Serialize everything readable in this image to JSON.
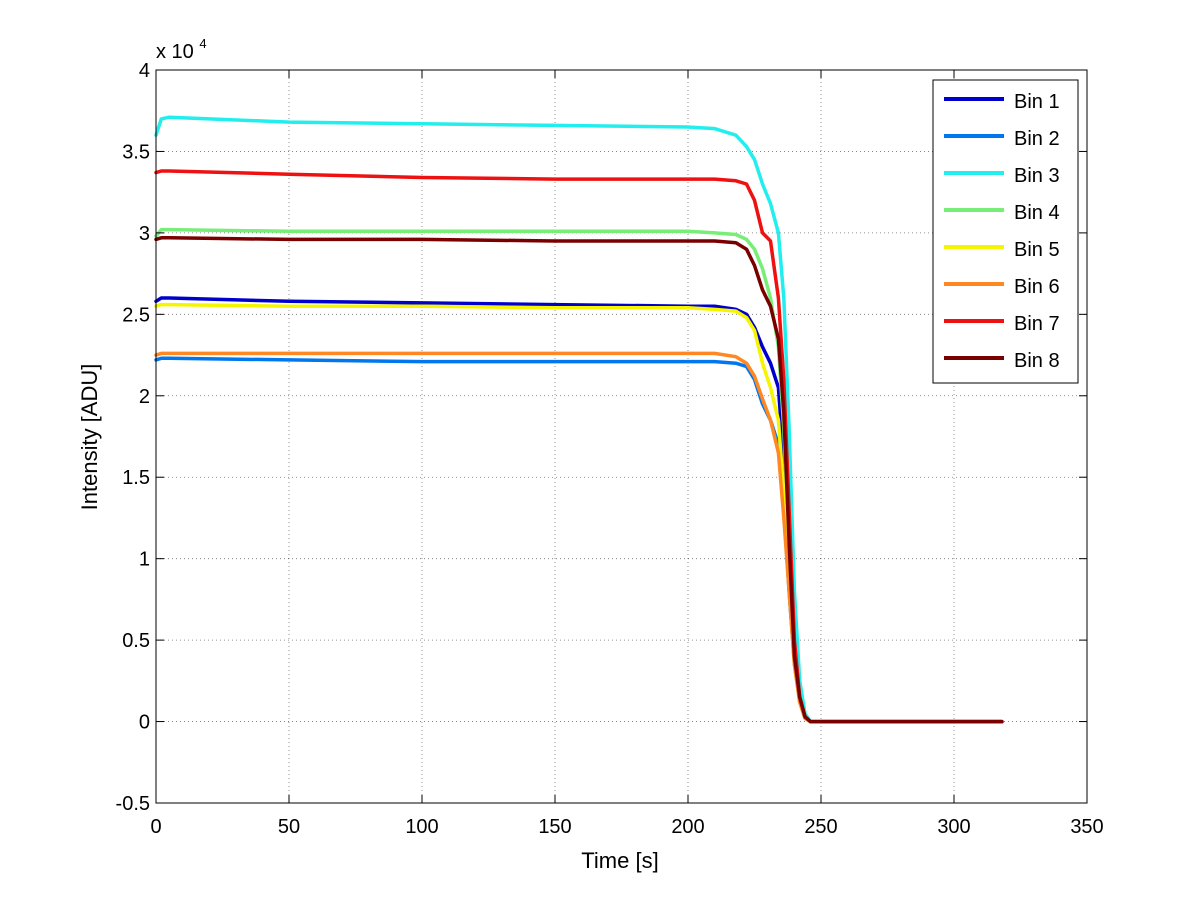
{
  "chart_data": {
    "type": "line",
    "xlabel": "Time [s]",
    "ylabel": "Intensity [ADU]",
    "y_multiplier_label": "x 10",
    "y_multiplier_exponent": "4",
    "xlim": [
      0,
      350
    ],
    "ylim": [
      -0.5,
      4
    ],
    "x_ticks": [
      0,
      50,
      100,
      150,
      200,
      250,
      300,
      350
    ],
    "y_ticks": [
      -0.5,
      0,
      0.5,
      1,
      1.5,
      2,
      2.5,
      3,
      3.5,
      4
    ],
    "x_tick_labels": [
      "0",
      "50",
      "100",
      "150",
      "200",
      "250",
      "300",
      "350"
    ],
    "y_tick_labels": [
      "-0.5",
      "0",
      "0.5",
      "1",
      "1.5",
      "2",
      "2.5",
      "3",
      "3.5",
      "4"
    ],
    "grid": true,
    "legend_position": "top-right",
    "series": [
      {
        "name": "Bin 1",
        "color": "#0000cc",
        "x": [
          0,
          2,
          5,
          50,
          100,
          150,
          200,
          210,
          218,
          222,
          225,
          228,
          231,
          234,
          236,
          238,
          240,
          242,
          244,
          246,
          250,
          300,
          318
        ],
        "y": [
          2.58,
          2.6,
          2.6,
          2.58,
          2.57,
          2.56,
          2.55,
          2.55,
          2.53,
          2.5,
          2.42,
          2.3,
          2.2,
          2.05,
          1.6,
          0.9,
          0.4,
          0.15,
          0.03,
          0,
          0,
          0,
          0
        ]
      },
      {
        "name": "Bin 2",
        "color": "#0077ee",
        "x": [
          0,
          2,
          5,
          50,
          100,
          150,
          200,
          210,
          218,
          222,
          225,
          228,
          231,
          234,
          236,
          238,
          240,
          242,
          244,
          246,
          250,
          300,
          318
        ],
        "y": [
          2.22,
          2.23,
          2.23,
          2.22,
          2.21,
          2.21,
          2.21,
          2.21,
          2.2,
          2.18,
          2.1,
          1.95,
          1.85,
          1.7,
          1.3,
          0.8,
          0.35,
          0.12,
          0.02,
          0,
          0,
          0,
          0
        ]
      },
      {
        "name": "Bin 3",
        "color": "#22eeee",
        "x": [
          0,
          2,
          5,
          50,
          100,
          150,
          200,
          210,
          218,
          222,
          225,
          228,
          231,
          234,
          236,
          238,
          240,
          242,
          244,
          246,
          250,
          300,
          318
        ],
        "y": [
          3.6,
          3.7,
          3.71,
          3.68,
          3.67,
          3.66,
          3.65,
          3.64,
          3.6,
          3.53,
          3.45,
          3.3,
          3.18,
          3.0,
          2.6,
          1.8,
          0.8,
          0.25,
          0.05,
          0,
          0,
          0,
          0
        ]
      },
      {
        "name": "Bin 4",
        "color": "#77ee77",
        "x": [
          0,
          2,
          5,
          50,
          100,
          150,
          200,
          210,
          218,
          222,
          225,
          228,
          231,
          234,
          236,
          238,
          240,
          242,
          244,
          246,
          250,
          300,
          318
        ],
        "y": [
          2.98,
          3.02,
          3.02,
          3.01,
          3.01,
          3.01,
          3.01,
          3.0,
          2.99,
          2.96,
          2.9,
          2.78,
          2.6,
          2.3,
          1.8,
          1.0,
          0.4,
          0.15,
          0.03,
          0,
          0,
          0,
          0
        ]
      },
      {
        "name": "Bin 5",
        "color": "#f5f500",
        "x": [
          0,
          2,
          5,
          50,
          100,
          150,
          200,
          210,
          218,
          222,
          225,
          228,
          231,
          234,
          236,
          238,
          240,
          242,
          244,
          246,
          250,
          300,
          318
        ],
        "y": [
          2.55,
          2.56,
          2.56,
          2.55,
          2.55,
          2.54,
          2.54,
          2.53,
          2.52,
          2.48,
          2.4,
          2.2,
          2.05,
          1.85,
          1.4,
          0.85,
          0.35,
          0.12,
          0.02,
          0,
          0,
          0,
          0
        ]
      },
      {
        "name": "Bin 6",
        "color": "#ff8822",
        "x": [
          0,
          2,
          5,
          50,
          100,
          150,
          200,
          210,
          218,
          222,
          225,
          228,
          231,
          234,
          236,
          238,
          240,
          242,
          244,
          246,
          250,
          300,
          318
        ],
        "y": [
          2.25,
          2.26,
          2.26,
          2.26,
          2.26,
          2.26,
          2.26,
          2.26,
          2.24,
          2.2,
          2.12,
          1.98,
          1.85,
          1.65,
          1.25,
          0.8,
          0.35,
          0.12,
          0.02,
          0,
          0,
          0,
          0
        ]
      },
      {
        "name": "Bin 7",
        "color": "#ee1111",
        "x": [
          0,
          2,
          5,
          50,
          100,
          150,
          200,
          210,
          218,
          222,
          225,
          228,
          231,
          234,
          236,
          238,
          240,
          242,
          244,
          246,
          250,
          300,
          318
        ],
        "y": [
          3.37,
          3.38,
          3.38,
          3.36,
          3.34,
          3.33,
          3.33,
          3.33,
          3.32,
          3.3,
          3.2,
          3.0,
          2.95,
          2.6,
          2.1,
          1.3,
          0.5,
          0.15,
          0.03,
          0,
          0,
          0,
          0
        ]
      },
      {
        "name": "Bin 8",
        "color": "#7a0000",
        "x": [
          0,
          2,
          5,
          50,
          100,
          150,
          200,
          210,
          218,
          222,
          225,
          228,
          231,
          234,
          236,
          238,
          240,
          242,
          244,
          246,
          250,
          300,
          318
        ],
        "y": [
          2.96,
          2.97,
          2.97,
          2.96,
          2.96,
          2.95,
          2.95,
          2.95,
          2.94,
          2.9,
          2.8,
          2.65,
          2.55,
          2.35,
          1.9,
          1.1,
          0.4,
          0.15,
          0.03,
          0,
          0,
          0,
          0
        ]
      }
    ]
  }
}
